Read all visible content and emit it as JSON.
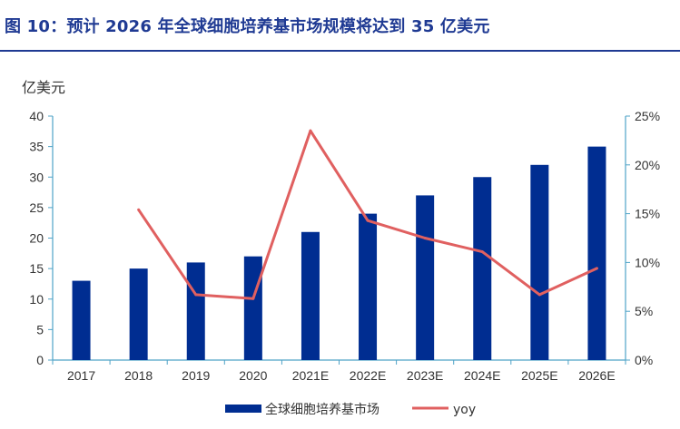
{
  "header": {
    "title": "图 10：预计 2026 年全球细胞培养基市场规模将达到 35 亿美元"
  },
  "colors": {
    "title": "#1f3a93",
    "bar": "#002D91",
    "line": "#E06060",
    "axis": "#4FA3C7"
  },
  "chart_data": {
    "type": "bar",
    "categories": [
      "2017",
      "2018",
      "2019",
      "2020",
      "2021E",
      "2022E",
      "2023E",
      "2024E",
      "2025E",
      "2026E"
    ],
    "series": [
      {
        "name": "全球细胞培养基市场",
        "type": "bar",
        "axis": "left",
        "values": [
          13,
          15,
          16,
          17,
          21,
          24,
          27,
          30,
          32,
          35
        ]
      },
      {
        "name": "yoy",
        "type": "line",
        "axis": "right",
        "values": [
          null,
          15.4,
          6.7,
          6.3,
          23.5,
          14.3,
          12.5,
          11.1,
          6.7,
          9.4
        ]
      }
    ],
    "ylabel": "亿美元",
    "ylim": [
      0,
      40
    ],
    "yticks": [
      "0",
      "5",
      "10",
      "15",
      "20",
      "25",
      "30",
      "35",
      "40"
    ],
    "y2lim": [
      0,
      25
    ],
    "y2ticks": [
      "0%",
      "5%",
      "10%",
      "15%",
      "20%",
      "25%"
    ],
    "grid": false,
    "legend": "bottom"
  }
}
